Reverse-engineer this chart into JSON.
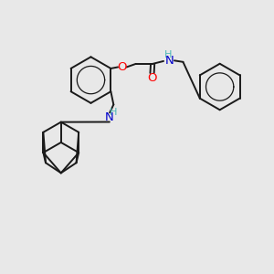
{
  "bg_color": "#e8e8e8",
  "bond_color": "#1a1a1a",
  "O_color": "#ff0000",
  "N_color": "#0000cc",
  "H_color": "#4db8b8",
  "line_width": 1.4,
  "font_size": 9.5,
  "fig_w": 3.0,
  "fig_h": 3.0,
  "dpi": 100,
  "xlim": [
    0,
    10
  ],
  "ylim": [
    0,
    10
  ]
}
